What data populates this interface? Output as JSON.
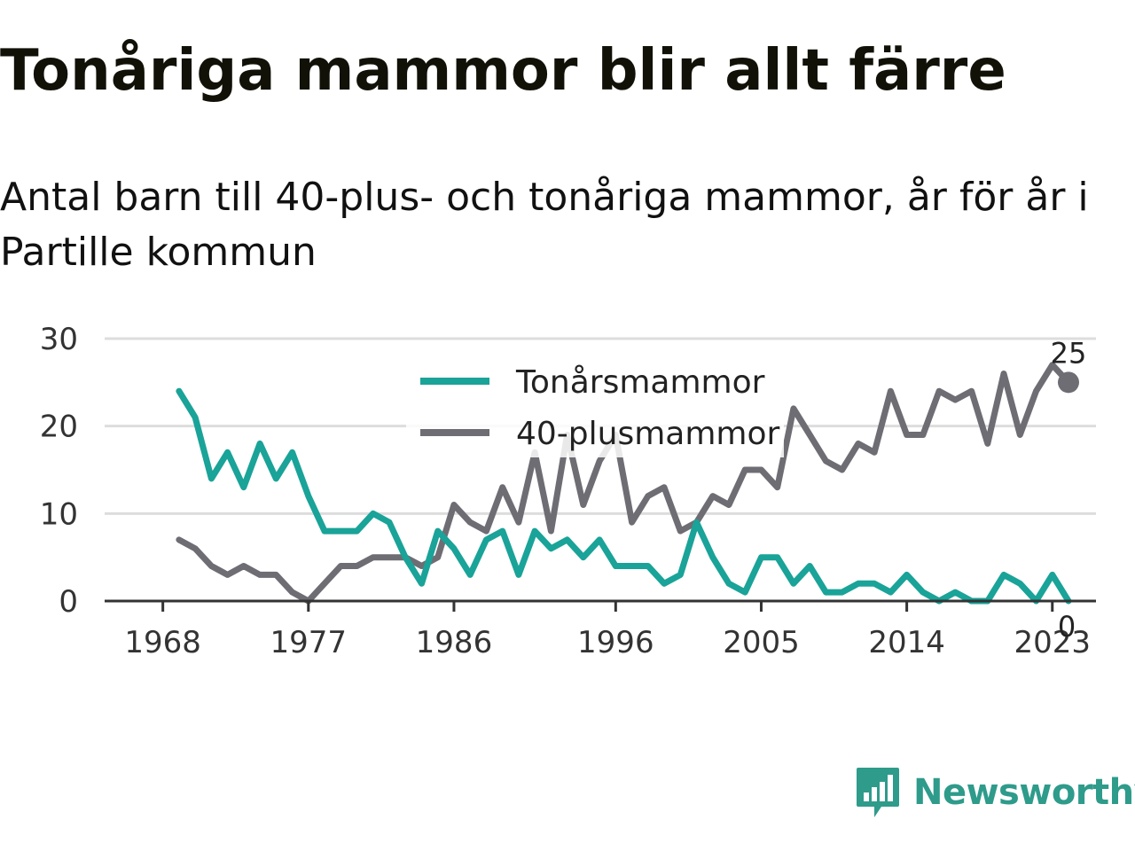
{
  "header": {
    "title": "Tonåriga mammor blir allt färre",
    "subtitle": "Antal barn till 40-plus- och tonåriga mammor, år för år i Partille kommun"
  },
  "brand": {
    "name": "Newsworthy",
    "logo_icon": "bar-chart-speech-bubble-icon",
    "color": "#2e9b8b"
  },
  "chart_data": {
    "type": "line",
    "title": "",
    "xlabel": "",
    "ylabel": "",
    "xlim": [
      1968,
      2024
    ],
    "ylim": [
      0,
      30
    ],
    "grid": true,
    "legend_position": "top-center",
    "yticks": [
      0,
      10,
      20,
      30
    ],
    "xticks": [
      1968,
      1977,
      1986,
      1996,
      2005,
      2014,
      2023
    ],
    "x": [
      1969,
      1970,
      1971,
      1972,
      1973,
      1974,
      1975,
      1976,
      1977,
      1978,
      1979,
      1980,
      1981,
      1982,
      1983,
      1984,
      1985,
      1986,
      1987,
      1988,
      1989,
      1990,
      1991,
      1992,
      1993,
      1994,
      1995,
      1996,
      1997,
      1998,
      1999,
      2000,
      2001,
      2002,
      2003,
      2004,
      2005,
      2006,
      2007,
      2008,
      2009,
      2010,
      2011,
      2012,
      2013,
      2014,
      2015,
      2016,
      2017,
      2018,
      2019,
      2020,
      2021,
      2022,
      2023,
      2024
    ],
    "series": [
      {
        "name": "Tonårsmammor",
        "color": "#1aa398",
        "values": [
          24,
          21,
          14,
          17,
          13,
          18,
          14,
          17,
          12,
          8,
          8,
          8,
          10,
          9,
          5,
          2,
          8,
          6,
          3,
          7,
          8,
          3,
          8,
          6,
          7,
          5,
          7,
          4,
          4,
          4,
          2,
          3,
          9,
          5,
          2,
          1,
          5,
          5,
          2,
          4,
          1,
          1,
          2,
          2,
          1,
          3,
          1,
          0,
          1,
          0,
          0,
          3,
          2,
          0,
          3,
          0
        ],
        "end_label": "0"
      },
      {
        "name": "40-plusmammor",
        "color": "#6e6d73",
        "values": [
          7,
          6,
          4,
          3,
          4,
          3,
          3,
          1,
          0,
          2,
          4,
          4,
          5,
          5,
          5,
          4,
          5,
          11,
          9,
          8,
          13,
          9,
          17,
          8,
          19,
          11,
          16,
          19,
          9,
          12,
          13,
          8,
          9,
          12,
          11,
          15,
          15,
          13,
          22,
          19,
          16,
          15,
          18,
          17,
          24,
          19,
          19,
          24,
          23,
          24,
          18,
          26,
          19,
          24,
          27,
          25
        ],
        "end_label": "25"
      }
    ]
  }
}
